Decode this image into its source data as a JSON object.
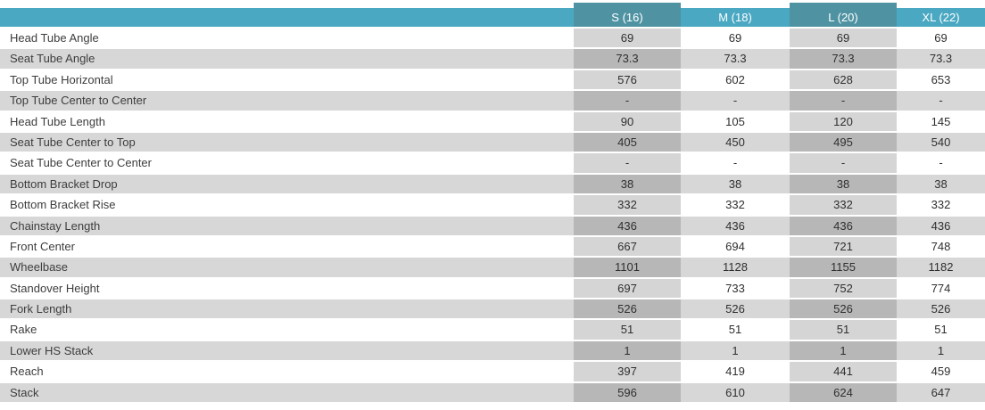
{
  "chart_data": {
    "type": "table",
    "columns": [
      "S (16)",
      "M (18)",
      "L (20)",
      "XL (22)"
    ],
    "rows": [
      {
        "label": "Head Tube Angle",
        "values": [
          "69",
          "69",
          "69",
          "69"
        ]
      },
      {
        "label": "Seat Tube Angle",
        "values": [
          "73.3",
          "73.3",
          "73.3",
          "73.3"
        ]
      },
      {
        "label": "Top Tube Horizontal",
        "values": [
          "576",
          "602",
          "628",
          "653"
        ]
      },
      {
        "label": "Top Tube Center to Center",
        "values": [
          "-",
          "-",
          "-",
          "-"
        ]
      },
      {
        "label": "Head Tube Length",
        "values": [
          "90",
          "105",
          "120",
          "145"
        ]
      },
      {
        "label": "Seat Tube Center to Top",
        "values": [
          "405",
          "450",
          "495",
          "540"
        ]
      },
      {
        "label": "Seat Tube Center to Center",
        "values": [
          "-",
          "-",
          "-",
          "-"
        ]
      },
      {
        "label": "Bottom Bracket Drop",
        "values": [
          "38",
          "38",
          "38",
          "38"
        ]
      },
      {
        "label": "Bottom Bracket Rise",
        "values": [
          "332",
          "332",
          "332",
          "332"
        ]
      },
      {
        "label": "Chainstay Length",
        "values": [
          "436",
          "436",
          "436",
          "436"
        ]
      },
      {
        "label": "Front Center",
        "values": [
          "667",
          "694",
          "721",
          "748"
        ]
      },
      {
        "label": "Wheelbase",
        "values": [
          "1101",
          "1128",
          "1155",
          "1182"
        ]
      },
      {
        "label": "Standover Height",
        "values": [
          "697",
          "733",
          "752",
          "774"
        ]
      },
      {
        "label": "Fork Length",
        "values": [
          "526",
          "526",
          "526",
          "526"
        ]
      },
      {
        "label": "Rake",
        "values": [
          "51",
          "51",
          "51",
          "51"
        ]
      },
      {
        "label": "Lower HS Stack",
        "values": [
          "1",
          "1",
          "1",
          "1"
        ]
      },
      {
        "label": "Reach",
        "values": [
          "397",
          "419",
          "441",
          "459"
        ]
      },
      {
        "label": "Stack",
        "values": [
          "596",
          "610",
          "624",
          "647"
        ]
      }
    ],
    "layout": {
      "row_striping": "alternating white / gray starting with white",
      "shaded_columns": [
        "S (16)",
        "L (20)"
      ],
      "legend_position": "none",
      "grid": false
    }
  },
  "colors": {
    "header_teal": "#4AA8C2",
    "header_teal_dark": "#4F93A3",
    "row_gray": "#D7D7D7",
    "cell_gray_on_white": "#D5D5D5",
    "cell_gray_on_gray": "#B7B7B7",
    "label_text": "#3D3D3D",
    "value_text": "#2F2F2F",
    "header_text": "#FFFFFF"
  }
}
